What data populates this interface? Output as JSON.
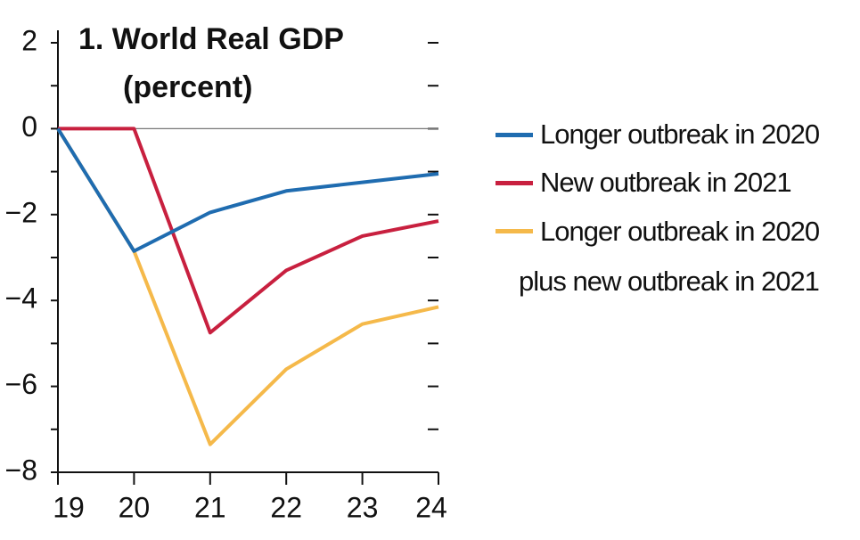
{
  "chart_data": {
    "type": "line",
    "title": "1. World Real GDP",
    "subtitle": "(percent)",
    "categories": [
      "19",
      "20",
      "21",
      "22",
      "23",
      "24"
    ],
    "series": [
      {
        "name": "Longer outbreak in 2020",
        "color": "#1f6cb0",
        "values": [
          0,
          -2.85,
          -1.95,
          -1.45,
          -1.25,
          -1.05
        ]
      },
      {
        "name": "New outbreak in 2021",
        "color": "#c8203f",
        "values": [
          0,
          0,
          -4.75,
          -3.3,
          -2.5,
          -2.15
        ]
      },
      {
        "name": "Longer outbreak in 2020 plus new outbreak in 2021",
        "color": "#f5b94a",
        "values": [
          0,
          -2.85,
          -7.35,
          -5.6,
          -4.55,
          -4.15
        ]
      }
    ],
    "ylim": [
      -8,
      2.2
    ],
    "yticks": [
      {
        "value": 2,
        "label": "2"
      },
      {
        "value": 0,
        "label": "0"
      },
      {
        "value": -2,
        "label": "−2"
      },
      {
        "value": -4,
        "label": "−4"
      },
      {
        "value": -6,
        "label": "−6"
      },
      {
        "value": -8,
        "label": "−8"
      }
    ]
  }
}
